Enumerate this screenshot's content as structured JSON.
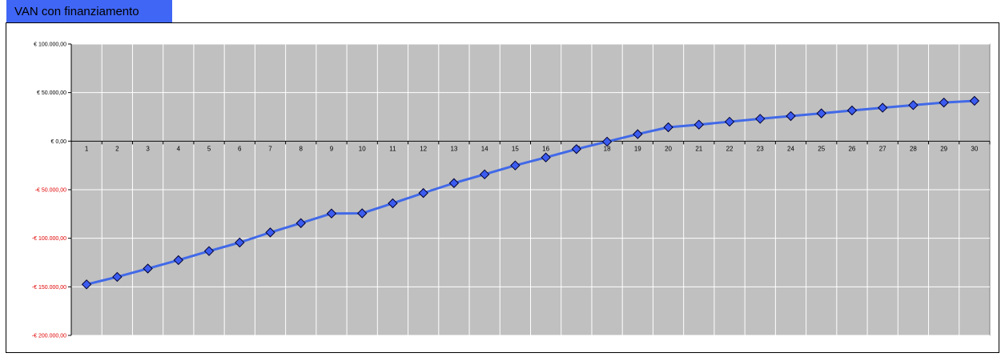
{
  "header": {
    "title": "VAN con finanziamento"
  },
  "colors": {
    "title_bg": "#3f66f5",
    "plot_bg": "#c0c0c0",
    "grid": "#ffffff",
    "line": "#4169e8",
    "marker": "#3c5cf0",
    "positive_label": "#000000",
    "negative_label": "#e00000"
  },
  "chart_data": {
    "type": "line",
    "title": "VAN con finanziamento",
    "xlabel": "",
    "ylabel": "",
    "ylim": [
      -200000,
      100000
    ],
    "grid": true,
    "legend": "none",
    "x": [
      1,
      2,
      3,
      4,
      5,
      6,
      7,
      8,
      9,
      10,
      11,
      12,
      13,
      14,
      15,
      16,
      17,
      18,
      19,
      20,
      21,
      22,
      23,
      24,
      25,
      26,
      27,
      28,
      29,
      30
    ],
    "y_ticks": [
      100000,
      50000,
      0,
      -50000,
      -100000,
      -150000,
      -200000
    ],
    "y_tick_labels": [
      "€ 100.000,00",
      "€ 50.000,00",
      "€ 0,00",
      "-€ 50.000,00",
      "-€ 100.000,00",
      "-€ 150.000,00",
      "-€ 200.000,00"
    ],
    "series": [
      {
        "values": [
          -147500,
          -139800,
          -131200,
          -122500,
          -113200,
          -104400,
          -94000,
          -84400,
          -74500,
          -74300,
          -64000,
          -53400,
          -43200,
          -34200,
          -25000,
          -16800,
          -8200,
          -500,
          7200,
          14300,
          17000,
          20000,
          23000,
          25800,
          28600,
          31600,
          34400,
          37100,
          39700,
          41500
        ]
      }
    ]
  }
}
